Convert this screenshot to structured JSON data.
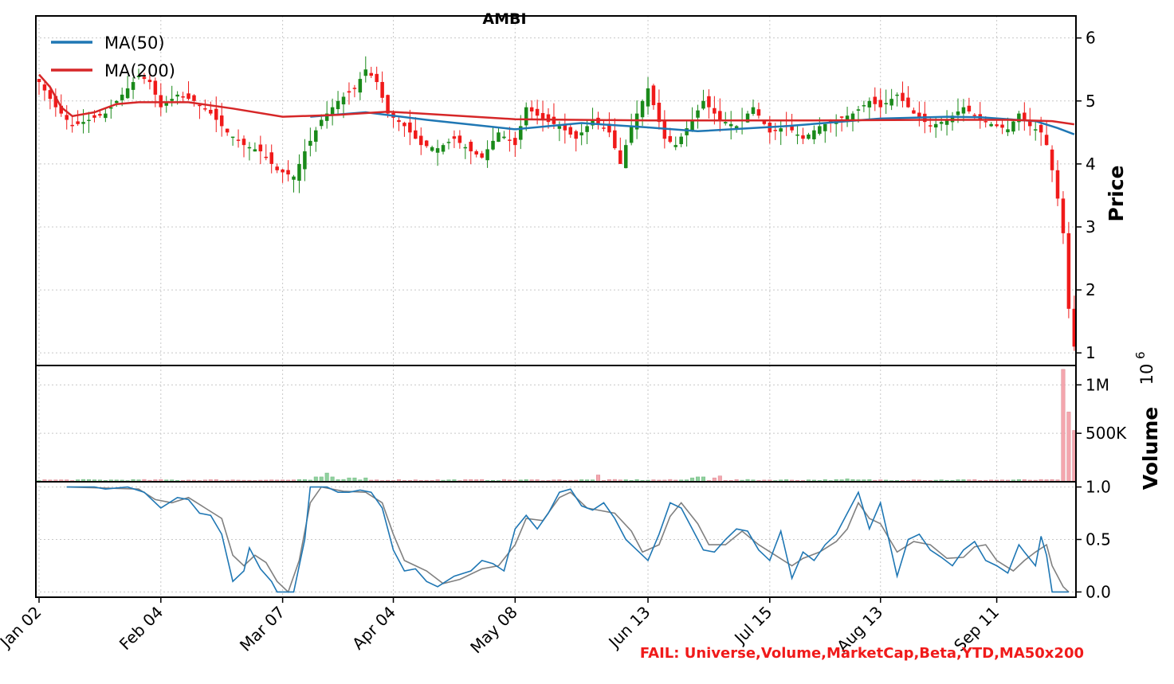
{
  "chart_data": {
    "type": "candlestick",
    "title": "AMBI",
    "ylabel": "Price",
    "volume_label": "Volume",
    "volume_exponent_base": "10",
    "volume_exponent_power": "6",
    "footer_text": "FAIL: Universe,Volume,MarketCap,Beta,YTD,MA50x200",
    "legend": [
      {
        "label": "MA(50)",
        "color": "#1f77b4"
      },
      {
        "label": "MA(200)",
        "color": "#d62728"
      }
    ],
    "colors": {
      "up": "#1a8a1a",
      "down": "#f01a1a",
      "vol_up": "#8fd19e",
      "vol_down": "#f4a6ae",
      "ma50": "#1f77b4",
      "ma200": "#d62728",
      "osc_fast": "#1f77b4",
      "osc_slow": "#808080"
    },
    "x_tick_labels": [
      "Jan 02",
      "Feb 04",
      "Mar 07",
      "Apr 04",
      "May 08",
      "Jun 13",
      "Jul 15",
      "Aug 13",
      "Sep 11"
    ],
    "x_tick_index": [
      0,
      22,
      44,
      64,
      86,
      110,
      132,
      152,
      173
    ],
    "price_ylim": [
      0.8,
      6.35
    ],
    "price_ticks": [
      "1",
      "2",
      "3",
      "4",
      "5",
      "6"
    ],
    "volume_ylim": [
      0,
      1.2
    ],
    "volume_ticks": [
      "500K",
      "1M"
    ],
    "osc_ylim": [
      -0.05,
      1.05
    ],
    "osc_ticks": [
      "0.0",
      "0.5",
      "1.0"
    ],
    "n_bars": 188,
    "price_anchors": [
      [
        0,
        5.3
      ],
      [
        3,
        4.9
      ],
      [
        6,
        4.6
      ],
      [
        9,
        4.7
      ],
      [
        12,
        4.8
      ],
      [
        15,
        5.1
      ],
      [
        18,
        5.4
      ],
      [
        20,
        5.3
      ],
      [
        22,
        4.9
      ],
      [
        25,
        5.1
      ],
      [
        28,
        5.0
      ],
      [
        31,
        4.8
      ],
      [
        34,
        4.5
      ],
      [
        37,
        4.3
      ],
      [
        40,
        4.2
      ],
      [
        43,
        3.9
      ],
      [
        46,
        3.8
      ],
      [
        48,
        4.2
      ],
      [
        51,
        4.7
      ],
      [
        54,
        5.0
      ],
      [
        57,
        5.2
      ],
      [
        59,
        5.5
      ],
      [
        61,
        5.3
      ],
      [
        63,
        4.8
      ],
      [
        66,
        4.6
      ],
      [
        69,
        4.3
      ],
      [
        72,
        4.25
      ],
      [
        75,
        4.4
      ],
      [
        78,
        4.2
      ],
      [
        80,
        4.1
      ],
      [
        83,
        4.5
      ],
      [
        86,
        4.3
      ],
      [
        88,
        4.9
      ],
      [
        91,
        4.7
      ],
      [
        94,
        4.6
      ],
      [
        97,
        4.4
      ],
      [
        100,
        4.7
      ],
      [
        103,
        4.5
      ],
      [
        105,
        4.0
      ],
      [
        107,
        4.6
      ],
      [
        110,
        5.2
      ],
      [
        113,
        4.4
      ],
      [
        115,
        4.3
      ],
      [
        118,
        4.7
      ],
      [
        120,
        5.0
      ],
      [
        123,
        4.7
      ],
      [
        126,
        4.6
      ],
      [
        129,
        4.9
      ],
      [
        132,
        4.5
      ],
      [
        135,
        4.6
      ],
      [
        138,
        4.4
      ],
      [
        141,
        4.6
      ],
      [
        144,
        4.7
      ],
      [
        147,
        4.8
      ],
      [
        150,
        5.0
      ],
      [
        152,
        4.9
      ],
      [
        155,
        5.1
      ],
      [
        158,
        4.8
      ],
      [
        161,
        4.6
      ],
      [
        164,
        4.7
      ],
      [
        167,
        4.9
      ],
      [
        170,
        4.7
      ],
      [
        173,
        4.6
      ],
      [
        175,
        4.55
      ],
      [
        177,
        4.8
      ],
      [
        179,
        4.6
      ],
      [
        181,
        4.5
      ],
      [
        182,
        4.3
      ],
      [
        183,
        3.9
      ],
      [
        184,
        3.45
      ],
      [
        185,
        2.9
      ],
      [
        186,
        1.7
      ],
      [
        187,
        1.1
      ]
    ],
    "ma50_anchors": [
      [
        49,
        4.75
      ],
      [
        59,
        4.82
      ],
      [
        70,
        4.7
      ],
      [
        86,
        4.55
      ],
      [
        98,
        4.65
      ],
      [
        110,
        4.58
      ],
      [
        119,
        4.52
      ],
      [
        135,
        4.6
      ],
      [
        152,
        4.72
      ],
      [
        164,
        4.75
      ],
      [
        170,
        4.74
      ],
      [
        180,
        4.68
      ],
      [
        184,
        4.57
      ],
      [
        187,
        4.47
      ]
    ],
    "ma200_anchors": [
      [
        0,
        5.42
      ],
      [
        2,
        5.22
      ],
      [
        4,
        4.9
      ],
      [
        6,
        4.76
      ],
      [
        10,
        4.82
      ],
      [
        14,
        4.95
      ],
      [
        18,
        4.98
      ],
      [
        27,
        4.98
      ],
      [
        35,
        4.88
      ],
      [
        44,
        4.75
      ],
      [
        54,
        4.78
      ],
      [
        63,
        4.83
      ],
      [
        73,
        4.78
      ],
      [
        86,
        4.71
      ],
      [
        110,
        4.69
      ],
      [
        140,
        4.69
      ],
      [
        160,
        4.7
      ],
      [
        175,
        4.7
      ],
      [
        183,
        4.68
      ],
      [
        187,
        4.63
      ]
    ],
    "volume_spikes": [
      [
        50,
        0.05
      ],
      [
        51,
        0.05
      ],
      [
        52,
        0.09
      ],
      [
        53,
        0.05
      ],
      [
        56,
        0.04
      ],
      [
        57,
        0.04
      ],
      [
        59,
        0.04
      ],
      [
        101,
        0.07
      ],
      [
        118,
        0.04
      ],
      [
        119,
        0.05
      ],
      [
        120,
        0.05
      ],
      [
        122,
        0.04
      ],
      [
        123,
        0.06
      ],
      [
        146,
        0.03
      ],
      [
        158,
        0.02
      ],
      [
        184,
        0.02
      ],
      [
        185,
        1.16
      ],
      [
        186,
        0.72
      ],
      [
        187,
        0.53
      ]
    ],
    "osc_fast_anchors": [
      [
        5,
        1.0
      ],
      [
        10,
        1.0
      ],
      [
        12,
        0.98
      ],
      [
        16,
        1.0
      ],
      [
        19,
        0.95
      ],
      [
        22,
        0.8
      ],
      [
        25,
        0.9
      ],
      [
        27,
        0.88
      ],
      [
        29,
        0.75
      ],
      [
        31,
        0.73
      ],
      [
        33,
        0.55
      ],
      [
        35,
        0.1
      ],
      [
        37,
        0.2
      ],
      [
        38,
        0.42
      ],
      [
        40,
        0.22
      ],
      [
        42,
        0.1
      ],
      [
        43,
        0.0
      ],
      [
        46,
        0.0
      ],
      [
        48,
        0.5
      ],
      [
        49,
        1.0
      ],
      [
        52,
        1.0
      ],
      [
        54,
        0.95
      ],
      [
        56,
        0.95
      ],
      [
        58,
        0.97
      ],
      [
        60,
        0.95
      ],
      [
        62,
        0.8
      ],
      [
        64,
        0.4
      ],
      [
        66,
        0.2
      ],
      [
        68,
        0.22
      ],
      [
        70,
        0.1
      ],
      [
        72,
        0.05
      ],
      [
        75,
        0.15
      ],
      [
        78,
        0.2
      ],
      [
        80,
        0.3
      ],
      [
        82,
        0.27
      ],
      [
        84,
        0.2
      ],
      [
        86,
        0.6
      ],
      [
        88,
        0.73
      ],
      [
        90,
        0.6
      ],
      [
        92,
        0.75
      ],
      [
        94,
        0.95
      ],
      [
        96,
        0.98
      ],
      [
        98,
        0.82
      ],
      [
        100,
        0.78
      ],
      [
        102,
        0.85
      ],
      [
        104,
        0.7
      ],
      [
        106,
        0.5
      ],
      [
        108,
        0.4
      ],
      [
        110,
        0.3
      ],
      [
        112,
        0.55
      ],
      [
        114,
        0.85
      ],
      [
        116,
        0.8
      ],
      [
        118,
        0.6
      ],
      [
        120,
        0.4
      ],
      [
        122,
        0.38
      ],
      [
        124,
        0.5
      ],
      [
        126,
        0.6
      ],
      [
        128,
        0.58
      ],
      [
        130,
        0.4
      ],
      [
        132,
        0.3
      ],
      [
        134,
        0.58
      ],
      [
        136,
        0.13
      ],
      [
        138,
        0.38
      ],
      [
        140,
        0.3
      ],
      [
        142,
        0.45
      ],
      [
        144,
        0.55
      ],
      [
        146,
        0.75
      ],
      [
        148,
        0.95
      ],
      [
        150,
        0.6
      ],
      [
        152,
        0.85
      ],
      [
        155,
        0.15
      ],
      [
        157,
        0.5
      ],
      [
        159,
        0.55
      ],
      [
        161,
        0.4
      ],
      [
        163,
        0.33
      ],
      [
        165,
        0.25
      ],
      [
        167,
        0.4
      ],
      [
        169,
        0.48
      ],
      [
        171,
        0.3
      ],
      [
        173,
        0.25
      ],
      [
        175,
        0.18
      ],
      [
        177,
        0.45
      ],
      [
        178,
        0.38
      ],
      [
        180,
        0.25
      ],
      [
        181,
        0.53
      ],
      [
        182,
        0.35
      ],
      [
        183,
        0.0
      ],
      [
        186,
        0.0
      ]
    ],
    "osc_slow_anchors": [
      [
        5,
        1.0
      ],
      [
        12,
        0.99
      ],
      [
        18,
        0.98
      ],
      [
        21,
        0.88
      ],
      [
        24,
        0.85
      ],
      [
        27,
        0.9
      ],
      [
        30,
        0.8
      ],
      [
        33,
        0.7
      ],
      [
        35,
        0.35
      ],
      [
        37,
        0.25
      ],
      [
        39,
        0.35
      ],
      [
        41,
        0.28
      ],
      [
        43,
        0.1
      ],
      [
        45,
        0.0
      ],
      [
        47,
        0.3
      ],
      [
        49,
        0.85
      ],
      [
        51,
        1.0
      ],
      [
        55,
        0.96
      ],
      [
        59,
        0.95
      ],
      [
        62,
        0.85
      ],
      [
        64,
        0.55
      ],
      [
        66,
        0.3
      ],
      [
        70,
        0.2
      ],
      [
        73,
        0.08
      ],
      [
        76,
        0.12
      ],
      [
        80,
        0.22
      ],
      [
        83,
        0.25
      ],
      [
        86,
        0.45
      ],
      [
        88,
        0.7
      ],
      [
        91,
        0.68
      ],
      [
        94,
        0.9
      ],
      [
        96,
        0.95
      ],
      [
        99,
        0.8
      ],
      [
        101,
        0.78
      ],
      [
        104,
        0.75
      ],
      [
        107,
        0.58
      ],
      [
        109,
        0.38
      ],
      [
        112,
        0.45
      ],
      [
        114,
        0.72
      ],
      [
        116,
        0.85
      ],
      [
        119,
        0.65
      ],
      [
        121,
        0.45
      ],
      [
        124,
        0.45
      ],
      [
        127,
        0.58
      ],
      [
        130,
        0.45
      ],
      [
        133,
        0.35
      ],
      [
        136,
        0.25
      ],
      [
        138,
        0.32
      ],
      [
        141,
        0.38
      ],
      [
        144,
        0.48
      ],
      [
        146,
        0.6
      ],
      [
        148,
        0.85
      ],
      [
        150,
        0.7
      ],
      [
        152,
        0.65
      ],
      [
        155,
        0.38
      ],
      [
        158,
        0.48
      ],
      [
        161,
        0.45
      ],
      [
        164,
        0.32
      ],
      [
        167,
        0.33
      ],
      [
        169,
        0.43
      ],
      [
        171,
        0.45
      ],
      [
        173,
        0.3
      ],
      [
        176,
        0.2
      ],
      [
        178,
        0.3
      ],
      [
        180,
        0.38
      ],
      [
        182,
        0.45
      ],
      [
        183,
        0.25
      ],
      [
        185,
        0.05
      ],
      [
        186,
        0.0
      ]
    ]
  }
}
